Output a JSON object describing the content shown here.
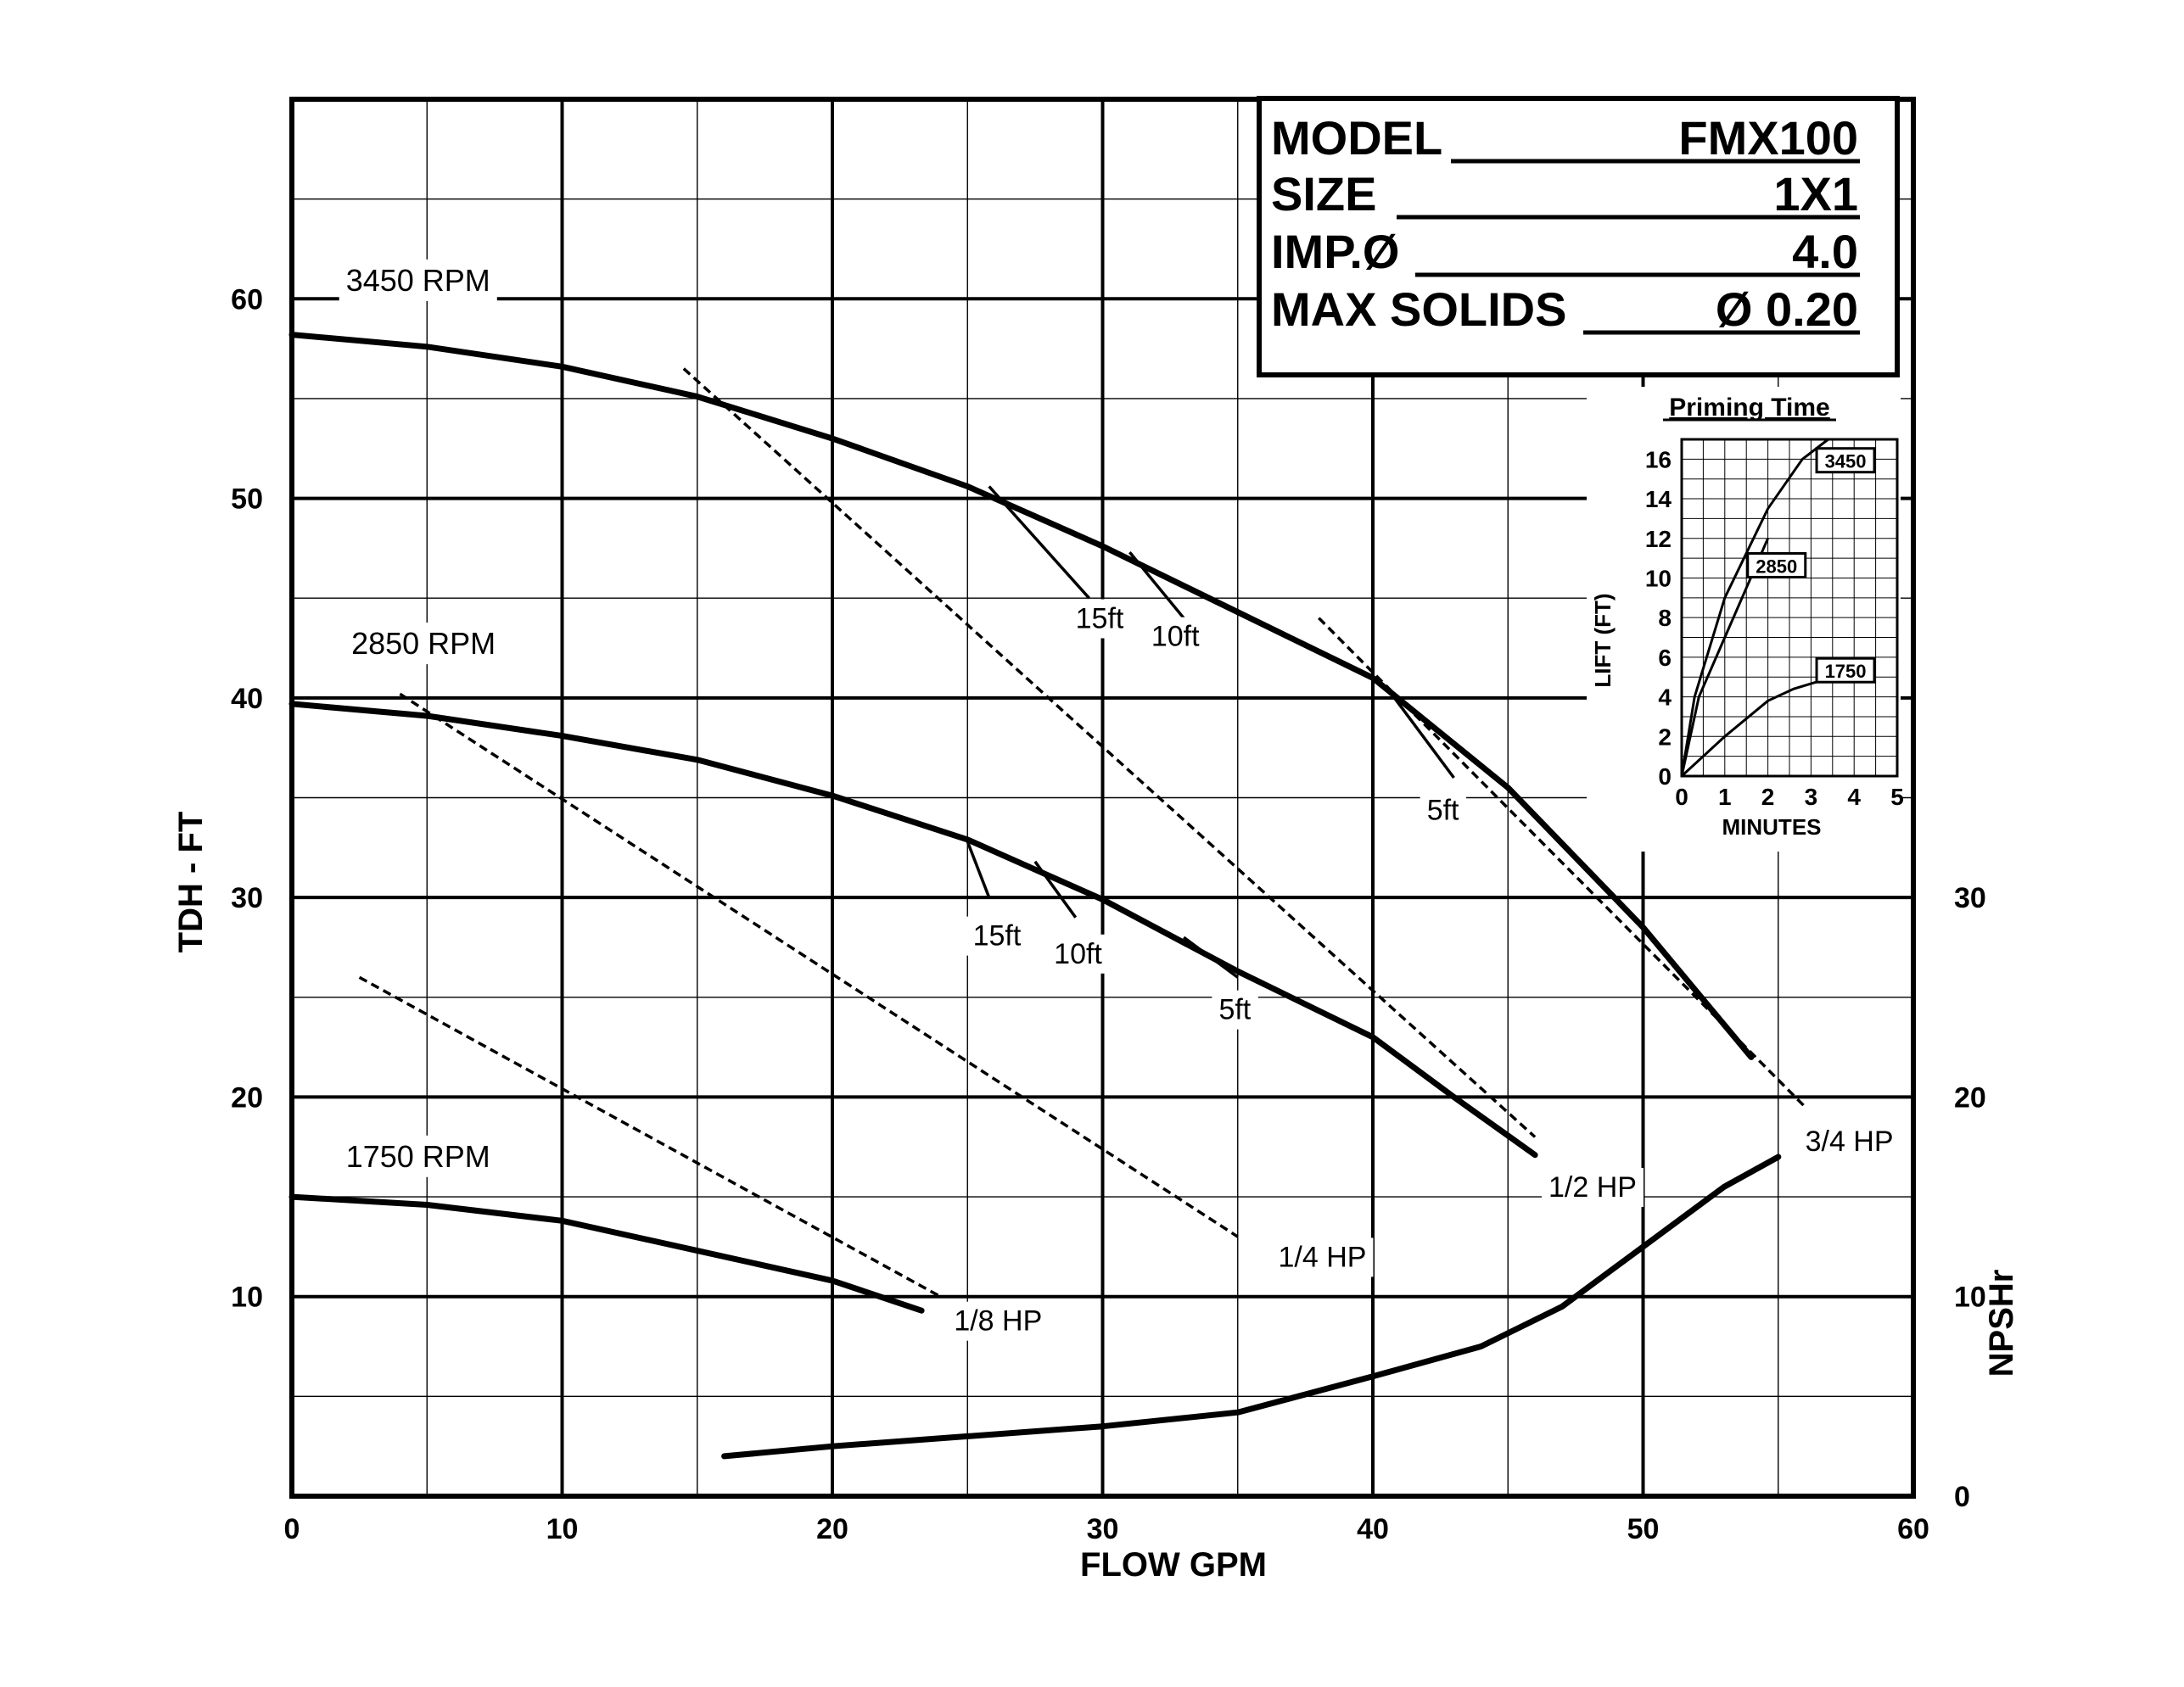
{
  "chart_data": {
    "type": "line",
    "xlabel": "FLOW GPM",
    "ylabel": "TDH - FT",
    "y2label": "NPSHr",
    "xlim": [
      0,
      60
    ],
    "ylim": [
      0,
      70
    ],
    "y2lim": [
      0,
      70
    ],
    "x_ticks": [
      0,
      10,
      20,
      30,
      40,
      50,
      60
    ],
    "y_ticks": [
      10,
      20,
      30,
      40,
      50,
      60
    ],
    "y2_ticks": [
      0,
      10,
      20,
      30
    ],
    "grid": true,
    "spec_box": [
      {
        "label": "MODEL",
        "value": "FMX100"
      },
      {
        "label": "SIZE",
        "value": "1X1"
      },
      {
        "label": "IMP.Ø",
        "value": "4.0"
      },
      {
        "label": "MAX SOLIDS",
        "value": "Ø 0.20"
      }
    ],
    "series": [
      {
        "name": "3450 RPM",
        "label_at": [
          2,
          60.4
        ],
        "x": [
          0,
          5,
          10,
          15,
          20,
          25,
          30,
          35,
          40,
          45,
          50,
          54
        ],
        "y": [
          58.2,
          57.6,
          56.6,
          55.1,
          53.0,
          50.6,
          47.6,
          44.3,
          41.0,
          35.5,
          28.5,
          22.0
        ]
      },
      {
        "name": "2850 RPM",
        "label_at": [
          2.2,
          42.2
        ],
        "x": [
          0,
          5,
          10,
          15,
          20,
          25,
          30,
          35,
          40,
          43,
          46
        ],
        "y": [
          39.7,
          39.1,
          38.1,
          36.9,
          35.1,
          32.9,
          29.9,
          26.3,
          23.0,
          20.0,
          17.1
        ]
      },
      {
        "name": "1750 RPM",
        "label_at": [
          2,
          16.5
        ],
        "x": [
          0,
          5,
          10,
          15,
          20,
          23.3
        ],
        "y": [
          15.0,
          14.6,
          13.8,
          12.3,
          10.8,
          9.3
        ]
      },
      {
        "name": "NPSHr",
        "x": [
          16,
          20,
          25,
          30,
          35,
          40,
          44,
          47,
          50,
          53,
          55
        ],
        "y": [
          2.0,
          2.5,
          3.0,
          3.5,
          4.2,
          6.0,
          7.5,
          9.5,
          12.5,
          15.5,
          17.0
        ]
      }
    ],
    "hp_lines": [
      {
        "label": "1/8 HP",
        "x": [
          2.5,
          24.0
        ],
        "y": [
          26.0,
          10.0
        ],
        "label_at": [
          24.5,
          8.3
        ]
      },
      {
        "label": "1/4 HP",
        "x": [
          4.0,
          35.0
        ],
        "y": [
          40.2,
          13.0
        ],
        "label_at": [
          36.5,
          11.5
        ]
      },
      {
        "label": "1/2 HP",
        "x": [
          14.5,
          46.0
        ],
        "y": [
          56.5,
          18.0
        ],
        "label_at": [
          46.5,
          15.0
        ]
      },
      {
        "label": "3/4 HP",
        "x": [
          38.0,
          56.0
        ],
        "y": [
          44.0,
          19.5
        ],
        "label_at": [
          56.0,
          17.3
        ]
      }
    ],
    "npsh_branches": [
      {
        "label": "15ft",
        "x": [
          25.8,
          29.5
        ],
        "y": [
          50.6,
          45.0
        ],
        "label_at": [
          29.0,
          43.5
        ]
      },
      {
        "label": "10ft",
        "x": [
          31.0,
          33.0
        ],
        "y": [
          47.3,
          44.0
        ],
        "label_at": [
          31.8,
          42.6
        ]
      },
      {
        "label": "5ft",
        "x": [
          40.8,
          43.0
        ],
        "y": [
          40.0,
          36.0
        ],
        "label_at": [
          42.0,
          33.9
        ]
      },
      {
        "label": "15ft",
        "x": [
          25.0,
          25.8
        ],
        "y": [
          32.8,
          30.0
        ],
        "label_at": [
          25.2,
          27.6
        ]
      },
      {
        "label": "10ft",
        "x": [
          27.5,
          29.0
        ],
        "y": [
          31.8,
          29.0
        ],
        "label_at": [
          28.2,
          26.7
        ]
      },
      {
        "label": "5ft",
        "x": [
          33.0,
          35.0
        ],
        "y": [
          28.0,
          26.0
        ],
        "label_at": [
          34.3,
          23.9
        ]
      }
    ],
    "inset": {
      "title": "Priming Time",
      "xlabel": "MINUTES",
      "ylabel": "LIFT (FT)",
      "xlim": [
        0,
        5
      ],
      "ylim": [
        0,
        17
      ],
      "x_ticks": [
        0,
        1,
        2,
        3,
        4,
        5
      ],
      "y_ticks": [
        0,
        2,
        4,
        6,
        8,
        10,
        12,
        14,
        16
      ],
      "series": [
        {
          "name": "3450",
          "x": [
            0,
            0.3,
            1,
            2,
            2.8,
            3.4
          ],
          "y": [
            0,
            4,
            9,
            13.5,
            16,
            17
          ]
        },
        {
          "name": "2850",
          "x": [
            0,
            0.4,
            1,
            1.6,
            2.0
          ],
          "y": [
            0,
            4,
            7,
            10,
            12
          ]
        },
        {
          "name": "1750",
          "x": [
            0,
            1,
            2,
            2.6,
            3.2
          ],
          "y": [
            0,
            2,
            3.8,
            4.4,
            4.8
          ]
        }
      ],
      "tags": [
        {
          "name": "3450",
          "at": [
            3.8,
            15.9
          ]
        },
        {
          "name": "2850",
          "at": [
            2.2,
            10.6
          ]
        },
        {
          "name": "1750",
          "at": [
            3.8,
            5.3
          ]
        }
      ]
    }
  }
}
